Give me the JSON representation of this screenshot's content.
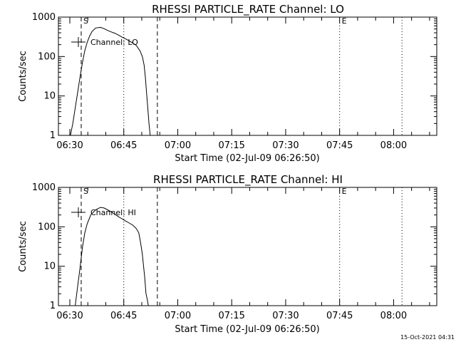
{
  "chart_data": [
    {
      "type": "line",
      "title": "RHESSI PARTICLE_RATE Channel: LO",
      "xlabel": "Start Time (02-Jul-09 06:26:50)",
      "ylabel": "Counts/sec",
      "yscale": "log",
      "ylim": [
        1,
        1000
      ],
      "xlim": [
        "06:26:50",
        "08:12:00"
      ],
      "x_tick_labels": [
        "06:30",
        "06:45",
        "07:00",
        "07:15",
        "07:30",
        "07:45",
        "08:00"
      ],
      "y_tick_labels": [
        "1",
        "10",
        "100",
        "1000"
      ],
      "legend": {
        "entries": [
          "Channel: LO"
        ],
        "placement": "top-left"
      },
      "markers": [
        {
          "label": "S",
          "time": "06:33:10",
          "style": "dashed"
        },
        {
          "label": "",
          "time": "06:54:20",
          "style": "dashed"
        },
        {
          "label": "",
          "time": "06:45:00",
          "style": "dotted"
        },
        {
          "label": "E",
          "time": "07:45:00",
          "style": "dotted"
        },
        {
          "label": "",
          "time": "08:02:20",
          "style": "dotted"
        }
      ],
      "series": [
        {
          "x": [
            "06:30:10",
            "06:30:50",
            "06:31:30",
            "06:32:10",
            "06:32:50",
            "06:33:30",
            "06:34:10",
            "06:34:50",
            "06:35:30",
            "06:36:10",
            "06:37:10",
            "06:38:30",
            "06:39:30",
            "06:40:30",
            "06:41:30",
            "06:42:30",
            "06:43:30",
            "06:44:30",
            "06:45:30",
            "06:46:30",
            "06:47:30",
            "06:48:30",
            "06:49:30",
            "06:50:10",
            "06:50:40",
            "06:51:00",
            "06:51:20",
            "06:51:40",
            "06:52:00",
            "06:52:20"
          ],
          "values": [
            1,
            2,
            5,
            12,
            30,
            70,
            140,
            230,
            330,
            430,
            530,
            550,
            510,
            460,
            420,
            390,
            350,
            310,
            280,
            250,
            220,
            190,
            140,
            100,
            60,
            30,
            12,
            5,
            2,
            1
          ]
        }
      ]
    },
    {
      "type": "line",
      "title": "RHESSI PARTICLE_RATE Channel: HI",
      "xlabel": "Start Time (02-Jul-09 06:26:50)",
      "ylabel": "Counts/sec",
      "yscale": "log",
      "ylim": [
        1,
        1000
      ],
      "xlim": [
        "06:26:50",
        "08:12:00"
      ],
      "x_tick_labels": [
        "06:30",
        "06:45",
        "07:00",
        "07:15",
        "07:30",
        "07:45",
        "08:00"
      ],
      "y_tick_labels": [
        "1",
        "10",
        "100",
        "1000"
      ],
      "legend": {
        "entries": [
          "Channel: HI"
        ],
        "placement": "top-left"
      },
      "markers": [
        {
          "label": "S",
          "time": "06:33:10",
          "style": "dashed"
        },
        {
          "label": "",
          "time": "06:54:20",
          "style": "dashed"
        },
        {
          "label": "",
          "time": "06:45:00",
          "style": "dotted"
        },
        {
          "label": "E",
          "time": "07:45:00",
          "style": "dotted"
        },
        {
          "label": "",
          "time": "08:02:20",
          "style": "dotted"
        }
      ],
      "series": [
        {
          "x": [
            "06:31:30",
            "06:32:10",
            "06:32:50",
            "06:33:30",
            "06:34:10",
            "06:34:50",
            "06:35:50",
            "06:37:10",
            "06:38:30",
            "06:39:30",
            "06:40:30",
            "06:41:30",
            "06:42:30",
            "06:43:30",
            "06:44:30",
            "06:45:30",
            "06:46:30",
            "06:47:30",
            "06:48:30",
            "06:49:10",
            "06:49:40",
            "06:50:10",
            "06:50:30",
            "06:50:50",
            "06:51:10",
            "06:51:30",
            "06:51:50"
          ],
          "values": [
            1,
            3,
            9,
            30,
            70,
            120,
            200,
            270,
            310,
            300,
            270,
            240,
            210,
            180,
            160,
            140,
            125,
            110,
            90,
            70,
            40,
            20,
            10,
            5,
            2,
            1.5,
            1
          ]
        }
      ]
    }
  ],
  "footer": {
    "timestamp": "15-Oct-2021 04:31"
  }
}
